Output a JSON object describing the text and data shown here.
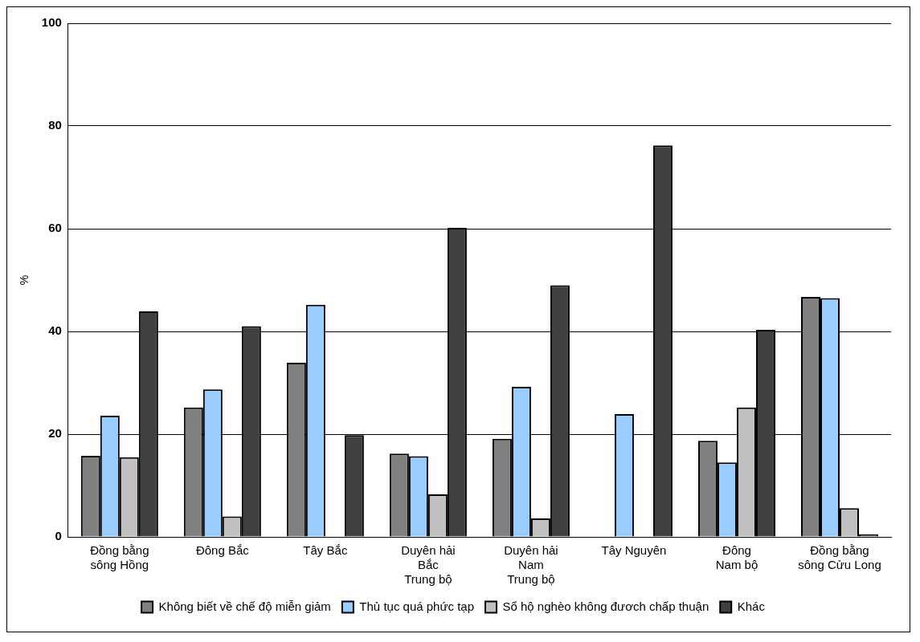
{
  "chart_data": {
    "type": "bar",
    "ylabel": "%",
    "categories": [
      "Đồng bằng\nsông Hồng",
      "Đông Bắc",
      "Tây Bắc",
      "Duyên hải\nBắc\nTrung bộ",
      "Duyên hải\nNam\nTrung bộ",
      "Tây Nguyên",
      "Đông\nNam bộ",
      "Đồng bằng\nsông Cửu Long"
    ],
    "series": [
      {
        "name": "Không biết về chế độ miễn giảm",
        "color": "#808080",
        "values": [
          15.8,
          25.2,
          33.9,
          16.2,
          19.1,
          0,
          18.7,
          46.7
        ]
      },
      {
        "name": "Thủ tục quá phức tạp",
        "color": "#99ccff",
        "values": [
          23.6,
          28.7,
          45.2,
          15.7,
          29.2,
          23.9,
          14.5,
          46.5
        ]
      },
      {
        "name": "Sổ hộ nghèo không đươch chấp thuận",
        "color": "#c0c0c0",
        "values": [
          15.5,
          4.0,
          0,
          8.3,
          3.6,
          0,
          25.2,
          5.6
        ]
      },
      {
        "name": "Khác",
        "color": "#404040",
        "values": [
          43.9,
          41.0,
          19.8,
          60.2,
          49.0,
          76.2,
          40.3,
          0.5
        ]
      }
    ],
    "ylim": [
      0,
      100
    ],
    "yticks": [
      0,
      20,
      40,
      60,
      80,
      100
    ],
    "grid": "y",
    "legend": "bottom"
  }
}
